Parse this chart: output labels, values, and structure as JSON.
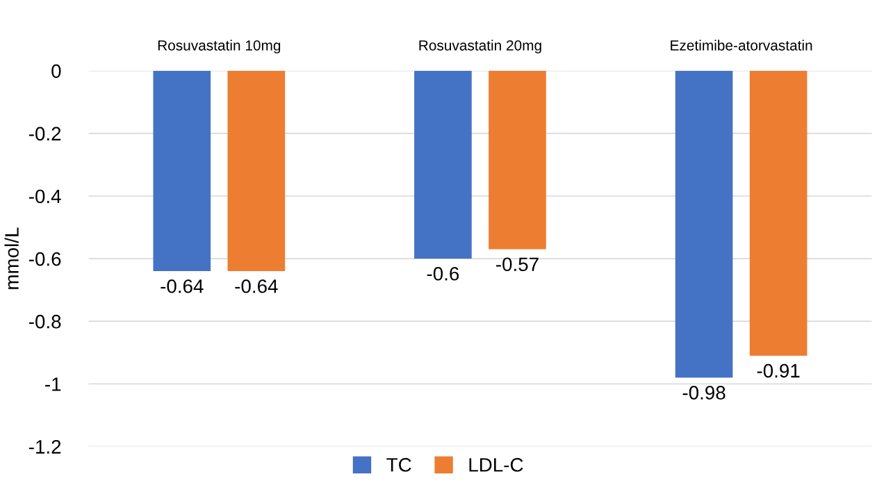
{
  "chart_data": {
    "type": "bar",
    "ylabel": "mmol/L",
    "categories": [
      "Rosuvastatin 10mg",
      "Rosuvastatin 20mg",
      "Ezetimibe-atorvastatin"
    ],
    "series": [
      {
        "name": "TC",
        "color": "#4472c4",
        "values": [
          -0.64,
          -0.6,
          -0.98
        ]
      },
      {
        "name": "LDL-C",
        "color": "#ed7d31",
        "values": [
          -0.64,
          -0.57,
          -0.91
        ]
      }
    ],
    "ylim": [
      -1.2,
      0
    ],
    "yticks": [
      -1.2,
      -1,
      -0.8,
      -0.6,
      -0.4,
      -0.2,
      0
    ],
    "grid": "y",
    "legend": "bottom",
    "data_labels": true
  }
}
